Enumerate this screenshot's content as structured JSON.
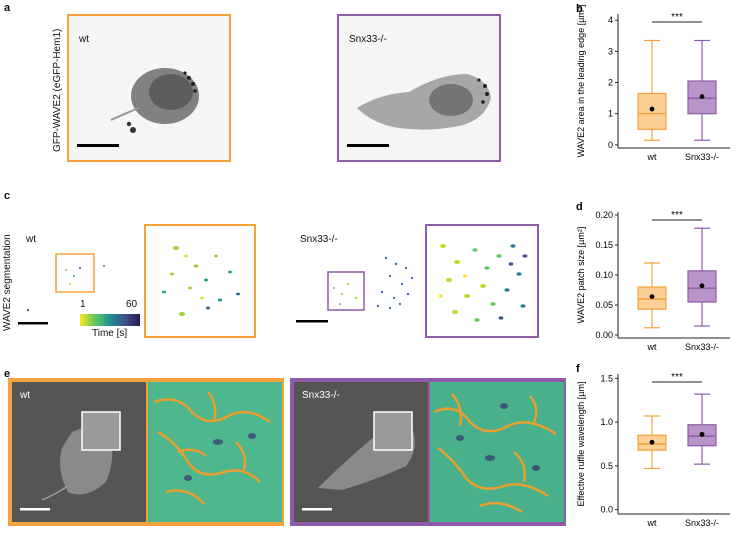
{
  "panels": {
    "a": {
      "letter": "a",
      "wt_label": "wt",
      "ko_label": "Snx33-/-",
      "ylabel": "GFP-WAVE2 (eGFP-Hem1)"
    },
    "c": {
      "letter": "c",
      "wt_label": "wt",
      "ko_label": "Snx33-/-",
      "ylabel": "WAVE2 segmentation",
      "cbar_min": "1",
      "cbar_max": "60",
      "cbar_label": "Time [s]"
    },
    "e": {
      "letter": "e",
      "wt_label": "wt",
      "ko_label": "Snx33-/-"
    }
  },
  "colors": {
    "wt": "#f4a23b",
    "wt_fill": "#fbcf95",
    "ko": "#8e5ba8",
    "ko_fill": "#b794c9"
  },
  "chart_data": [
    {
      "id": "b",
      "letter": "b",
      "type": "box",
      "categories": [
        "wt",
        "Snx33-/-"
      ],
      "ylabel": "WAVE2 area in the leading edge [µm²]",
      "ylim": [
        -0.1,
        4.2
      ],
      "yticks": [
        "0",
        "1",
        "2",
        "3",
        "4"
      ],
      "significance": "***",
      "series": [
        {
          "whisker_low": 0.15,
          "q1": 0.5,
          "median": 1.0,
          "q3": 1.65,
          "whisker_high": 3.35,
          "mean": 1.15
        },
        {
          "whisker_low": 0.15,
          "q1": 1.0,
          "median": 1.5,
          "q3": 2.05,
          "whisker_high": 3.35,
          "mean": 1.55
        }
      ]
    },
    {
      "id": "d",
      "letter": "d",
      "type": "box",
      "categories": [
        "wt",
        "Snx33-/-"
      ],
      "ylabel": "WAVE2 patch size [µm²]",
      "ylim": [
        -0.005,
        0.205
      ],
      "yticks": [
        "0.00",
        "0.05",
        "0.10",
        "0.15",
        "0.20"
      ],
      "significance": "***",
      "series": [
        {
          "whisker_low": 0.012,
          "q1": 0.043,
          "median": 0.06,
          "q3": 0.08,
          "whisker_high": 0.12,
          "mean": 0.064
        },
        {
          "whisker_low": 0.015,
          "q1": 0.055,
          "median": 0.078,
          "q3": 0.107,
          "whisker_high": 0.178,
          "mean": 0.082
        }
      ]
    },
    {
      "id": "f",
      "letter": "f",
      "type": "box",
      "categories": [
        "wt",
        "Snx33-/-"
      ],
      "ylabel": "Effective ruffle wavelength [µm]",
      "ylim": [
        -0.05,
        1.55
      ],
      "yticks": [
        "0.0",
        "0.5",
        "1.0",
        "1.5"
      ],
      "significance": "***",
      "series": [
        {
          "whisker_low": 0.47,
          "q1": 0.68,
          "median": 0.75,
          "q3": 0.85,
          "whisker_high": 1.07,
          "mean": 0.77
        },
        {
          "whisker_low": 0.52,
          "q1": 0.73,
          "median": 0.84,
          "q3": 0.97,
          "whisker_high": 1.32,
          "mean": 0.86
        }
      ]
    }
  ]
}
